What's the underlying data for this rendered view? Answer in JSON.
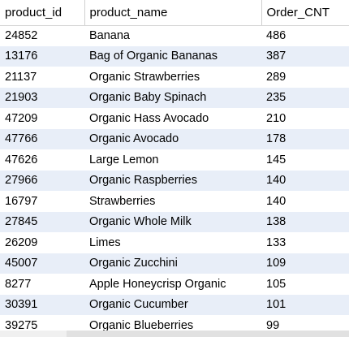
{
  "columns": [
    "product_id",
    "product_name",
    "Order_CNT"
  ],
  "rows": [
    {
      "product_id": "24852",
      "product_name": "Banana",
      "order_cnt": "486"
    },
    {
      "product_id": "13176",
      "product_name": "Bag of Organic Bananas",
      "order_cnt": "387"
    },
    {
      "product_id": "21137",
      "product_name": "Organic Strawberries",
      "order_cnt": "289"
    },
    {
      "product_id": "21903",
      "product_name": "Organic Baby Spinach",
      "order_cnt": "235"
    },
    {
      "product_id": "47209",
      "product_name": "Organic Hass Avocado",
      "order_cnt": "210"
    },
    {
      "product_id": "47766",
      "product_name": "Organic Avocado",
      "order_cnt": "178"
    },
    {
      "product_id": "47626",
      "product_name": "Large Lemon",
      "order_cnt": "145"
    },
    {
      "product_id": "27966",
      "product_name": "Organic Raspberries",
      "order_cnt": "140"
    },
    {
      "product_id": "16797",
      "product_name": "Strawberries",
      "order_cnt": "140"
    },
    {
      "product_id": "27845",
      "product_name": "Organic Whole Milk",
      "order_cnt": "138"
    },
    {
      "product_id": "26209",
      "product_name": "Limes",
      "order_cnt": "133"
    },
    {
      "product_id": "45007",
      "product_name": "Organic Zucchini",
      "order_cnt": "109"
    },
    {
      "product_id": "8277",
      "product_name": "Apple Honeycrisp Organic",
      "order_cnt": "105"
    },
    {
      "product_id": "30391",
      "product_name": "Organic Cucumber",
      "order_cnt": "101"
    },
    {
      "product_id": "39275",
      "product_name": "Organic Blueberries",
      "order_cnt": "99"
    }
  ],
  "colors": {
    "stripe": "#e8eef8",
    "header_border": "#cfcfcf"
  }
}
